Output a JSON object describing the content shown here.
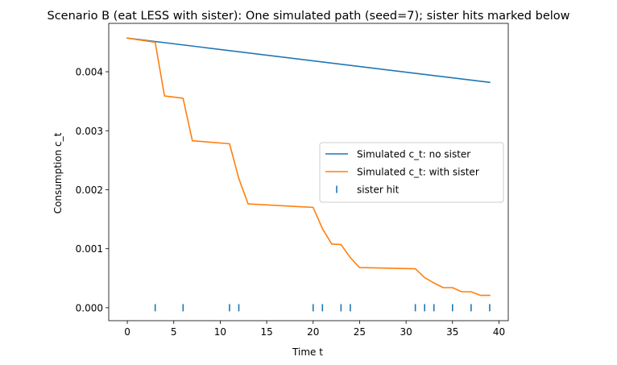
{
  "chart_data": {
    "type": "line",
    "title": "Scenario B (eat LESS with sister): One simulated path (seed=7); sister hits marked below",
    "xlabel": "Time t",
    "ylabel": "Consumption c_t",
    "xlim": [
      -2,
      41
    ],
    "ylim": [
      -0.00022,
      0.00482
    ],
    "x_ticks": [
      0,
      5,
      10,
      15,
      20,
      25,
      30,
      35,
      40
    ],
    "x_tick_labels": [
      "0",
      "5",
      "10",
      "15",
      "20",
      "25",
      "30",
      "35",
      "40"
    ],
    "y_ticks": [
      0,
      0.001,
      0.002,
      0.003,
      0.004
    ],
    "y_tick_labels": [
      "0.000",
      "0.001",
      "0.002",
      "0.003",
      "0.004"
    ],
    "series": [
      {
        "name": "Simulated c_t: no sister",
        "color": "#1f77b4",
        "x": [
          0,
          39
        ],
        "values": [
          0.00457,
          0.00382
        ]
      },
      {
        "name": "Simulated c_t: with sister",
        "color": "#ff7f0e",
        "x": [
          0,
          3,
          4,
          6,
          7,
          11,
          12,
          13,
          20,
          21,
          22,
          23,
          24,
          25,
          31,
          32,
          33,
          34,
          35,
          36,
          37,
          38,
          39
        ],
        "values": [
          0.00457,
          0.0045,
          0.00359,
          0.00355,
          0.00283,
          0.00278,
          0.00219,
          0.00176,
          0.0017,
          0.00134,
          0.00108,
          0.00107,
          0.00085,
          0.00068,
          0.00066,
          0.00051,
          0.00042,
          0.00034,
          0.00034,
          0.00027,
          0.00027,
          0.00021,
          0.00021
        ]
      }
    ],
    "markers": {
      "name": "sister hit",
      "color": "#1f77b4",
      "x": [
        3,
        6,
        11,
        12,
        20,
        21,
        23,
        24,
        31,
        32,
        33,
        35,
        37,
        39
      ],
      "y": 0
    },
    "legend": {
      "position": "center-right",
      "entries": [
        "Simulated c_t: no sister",
        "Simulated c_t: with sister",
        "sister hit"
      ]
    }
  }
}
